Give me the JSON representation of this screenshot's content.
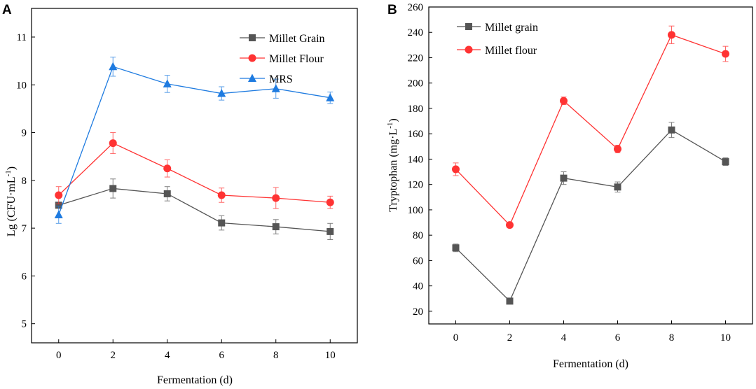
{
  "chart_data": [
    {
      "panel": "A",
      "type": "line",
      "xlabel": "Fermentation (d)",
      "ylabel": "Lg (CFU·mL⁻¹)",
      "ylabel_base": "Lg (CFU·mL",
      "ylabel_sup": "-1",
      "ylabel_close": ")",
      "x": [
        0,
        2,
        4,
        6,
        8,
        10
      ],
      "xlim": [
        -1,
        11
      ],
      "ylim": [
        4.6,
        11.6
      ],
      "xticks": [
        "0",
        "2",
        "4",
        "6",
        "8",
        "10"
      ],
      "yticks": [
        "5",
        "6",
        "7",
        "8",
        "9",
        "10",
        "11"
      ],
      "series": [
        {
          "name": "Millet Grain",
          "color": "#555555",
          "marker": "square",
          "values": [
            7.48,
            7.83,
            7.72,
            7.11,
            7.03,
            6.93
          ],
          "errors": [
            0.05,
            0.2,
            0.15,
            0.15,
            0.15,
            0.17
          ]
        },
        {
          "name": "Millet Flour",
          "color": "#ff3333",
          "marker": "circle",
          "values": [
            7.69,
            8.78,
            8.25,
            7.69,
            7.63,
            7.54
          ],
          "errors": [
            0.18,
            0.22,
            0.18,
            0.15,
            0.22,
            0.13
          ]
        },
        {
          "name": "MRS",
          "color": "#1e7be0",
          "marker": "triangle",
          "values": [
            7.28,
            10.38,
            10.02,
            9.82,
            9.92,
            9.73
          ],
          "errors": [
            0.18,
            0.2,
            0.18,
            0.14,
            0.2,
            0.12
          ]
        }
      ]
    },
    {
      "panel": "B",
      "type": "line",
      "xlabel": "Fermentation (d)",
      "ylabel": "Tryptophan (mg·L⁻¹)",
      "ylabel_base": "Tryptophan (mg·L",
      "ylabel_sup": "-1",
      "ylabel_close": ")",
      "x": [
        0,
        2,
        4,
        6,
        8,
        10
      ],
      "xlim": [
        -1,
        11
      ],
      "ylim": [
        10,
        260
      ],
      "xticks": [
        "0",
        "2",
        "4",
        "6",
        "8",
        "10"
      ],
      "yticks": [
        "20",
        "40",
        "60",
        "80",
        "100",
        "120",
        "140",
        "160",
        "180",
        "200",
        "220",
        "240",
        "260"
      ],
      "series": [
        {
          "name": "Millet grain",
          "color": "#555555",
          "marker": "square",
          "values": [
            70,
            28,
            125,
            118,
            163,
            138
          ],
          "errors": [
            3,
            2,
            5,
            4,
            6,
            3
          ]
        },
        {
          "name": "Millet flour",
          "color": "#ff3333",
          "marker": "circle",
          "values": [
            132,
            88,
            186,
            148,
            238,
            223
          ],
          "errors": [
            5,
            2,
            3,
            3,
            7,
            6
          ]
        }
      ]
    }
  ]
}
